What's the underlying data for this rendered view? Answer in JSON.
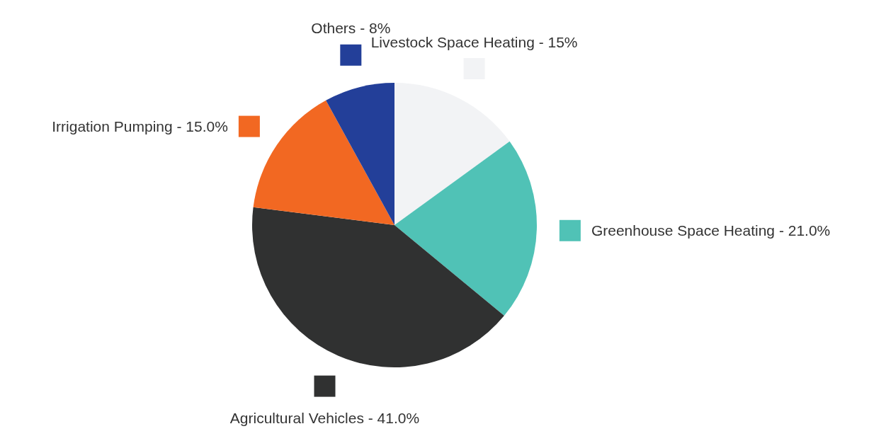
{
  "chart_data": {
    "type": "pie",
    "categories": [
      "Livestock Space Heating",
      "Greenhouse Space Heating",
      "Agricultural Vehicles",
      "Irrigation Pumping",
      "Others"
    ],
    "values": [
      15,
      21,
      41,
      15,
      8
    ],
    "colors": [
      "#f2f3f5",
      "#50c2b6",
      "#303131",
      "#f26822",
      "#233f99"
    ],
    "value_labels": [
      "15%",
      "21.0%",
      "41.0%",
      "15.0%",
      "8%"
    ]
  }
}
